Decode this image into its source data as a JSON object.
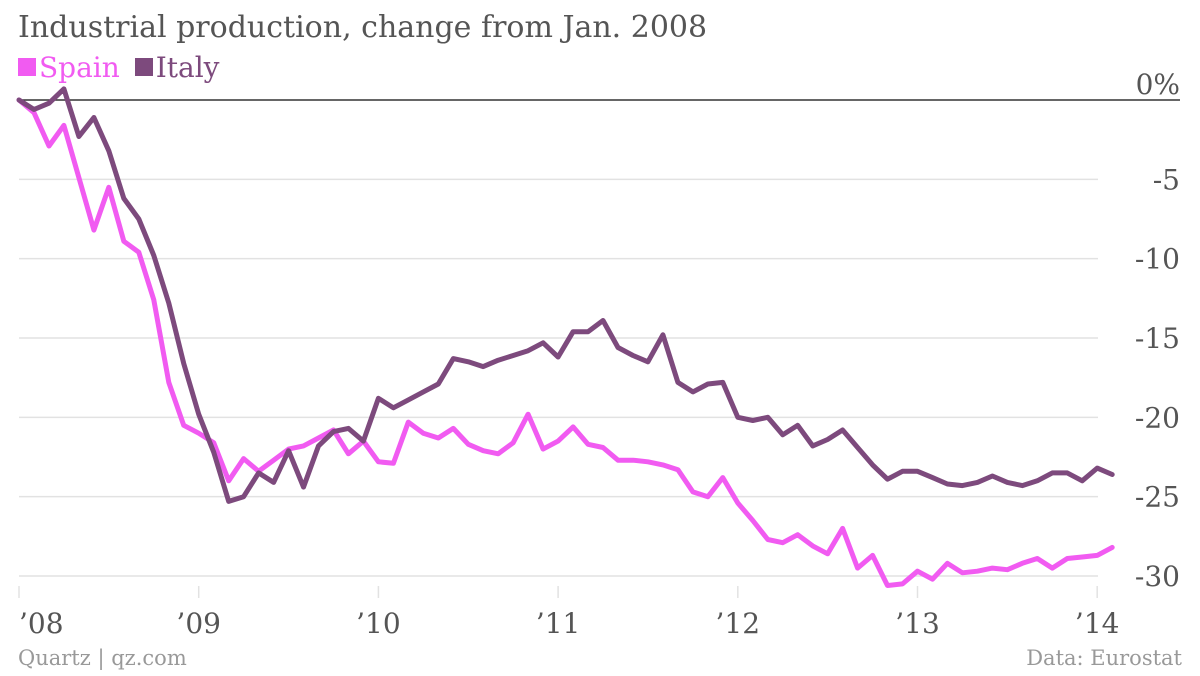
{
  "chart_data": {
    "type": "line",
    "title": "Industrial production, change from Jan. 2008",
    "xlabel": "",
    "ylabel": "",
    "x_tick_labels": [
      "’08",
      "’09",
      "’10",
      "’11",
      "’12",
      "’13",
      "’14"
    ],
    "y_tick_labels": [
      "0%",
      "-5",
      "-10",
      "-15",
      "-20",
      "-25",
      "-30"
    ],
    "y_ticks": [
      0,
      -5,
      -10,
      -15,
      -20,
      -25,
      -30
    ],
    "ylim": [
      -31,
      1
    ],
    "xlim": [
      "2008-01",
      "2014-03"
    ],
    "grid": true,
    "legend": "top-left",
    "x_start": "2008-01",
    "x_step": "month",
    "series": [
      {
        "name": "Spain",
        "color": "#f15bf1",
        "values": [
          0,
          -0.8,
          -2.9,
          -1.6,
          -4.9,
          -8.2,
          -5.5,
          -8.9,
          -9.6,
          -12.6,
          -17.8,
          -20.5,
          -21.0,
          -21.6,
          -24.0,
          -22.6,
          -23.4,
          -22.7,
          -22.0,
          -21.8,
          -21.3,
          -20.8,
          -22.3,
          -21.5,
          -22.8,
          -22.9,
          -20.3,
          -21.0,
          -21.3,
          -20.7,
          -21.7,
          -22.1,
          -22.3,
          -21.6,
          -19.8,
          -22.0,
          -21.5,
          -20.6,
          -21.7,
          -21.9,
          -22.7,
          -22.7,
          -22.8,
          -23.0,
          -23.3,
          -24.7,
          -25.0,
          -23.8,
          -25.4,
          -26.5,
          -27.7,
          -27.9,
          -27.4,
          -28.1,
          -28.6,
          -27.0,
          -29.5,
          -28.7,
          -30.6,
          -30.5,
          -29.7,
          -30.2,
          -29.2,
          -29.8,
          -29.7,
          -29.5,
          -29.6,
          -29.2,
          -28.9,
          -29.5,
          -28.9,
          -28.8,
          -28.7,
          -28.2
        ]
      },
      {
        "name": "Italy",
        "color": "#7d4a7d",
        "values": [
          0,
          -0.6,
          -0.2,
          0.7,
          -2.3,
          -1.1,
          -3.2,
          -6.2,
          -7.5,
          -9.8,
          -12.8,
          -16.6,
          -19.8,
          -22.2,
          -25.3,
          -25.0,
          -23.5,
          -24.1,
          -22.1,
          -24.4,
          -21.8,
          -20.9,
          -20.7,
          -21.5,
          -18.8,
          -19.4,
          -18.9,
          -18.4,
          -17.9,
          -16.3,
          -16.5,
          -16.8,
          -16.4,
          -16.1,
          -15.8,
          -15.3,
          -16.2,
          -14.6,
          -14.6,
          -13.9,
          -15.6,
          -16.1,
          -16.5,
          -14.8,
          -17.8,
          -18.4,
          -17.9,
          -17.8,
          -20.0,
          -20.2,
          -20.0,
          -21.1,
          -20.5,
          -21.8,
          -21.4,
          -20.8,
          -21.9,
          -23.0,
          -23.9,
          -23.4,
          -23.4,
          -23.8,
          -24.2,
          -24.3,
          -24.1,
          -23.7,
          -24.1,
          -24.3,
          -24.0,
          -23.5,
          -23.5,
          -24.0,
          -23.2,
          -23.6
        ]
      }
    ]
  },
  "footer": {
    "source_left": "Quartz | qz.com",
    "source_right": "Data: Eurostat"
  },
  "colors": {
    "spain": "#f15bf1",
    "italy": "#7d4a7d",
    "gridline": "#e2e2e2",
    "zero_line": "#333333",
    "axis_text": "#555555"
  }
}
